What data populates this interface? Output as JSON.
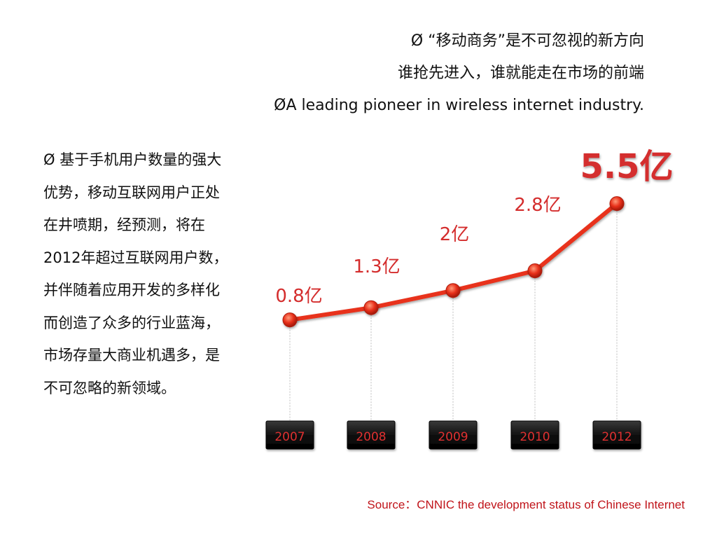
{
  "header": {
    "line1": "Ø “移动商务”是不可忽视的新方向",
    "line2": "谁抢先进入，谁就能走在市场的前端",
    "line3": "ØA leading pioneer in wireless internet industry."
  },
  "body": {
    "paragraph": "Ø  基于手机用户数量的强大优势，移动互联网用户正处在井喷期，经预测，将在2012年超过互联网用户数，并伴随着应用开发的多样化而创造了众多的行业蓝海，市场存量大商业机遇多，是不可忽略的新领域。"
  },
  "chart_data": {
    "type": "line",
    "categories": [
      "2007",
      "2008",
      "2009",
      "2010",
      "2012"
    ],
    "values": [
      0.8,
      1.3,
      2,
      2.8,
      5.5
    ],
    "data_labels": [
      "0.8亿",
      "1.3亿",
      "2亿",
      "2.8亿",
      "5.5亿"
    ],
    "title": "",
    "xlabel": "",
    "ylabel": "",
    "grid": false,
    "legend": "none",
    "colors": {
      "line": "#e8301a",
      "marker": "#e8301a",
      "label": "#d42d2d",
      "year_box": "#111111",
      "year_text": "#e03030"
    }
  },
  "source": {
    "text": "Source：CNNIC   the development status of Chinese Internet"
  }
}
